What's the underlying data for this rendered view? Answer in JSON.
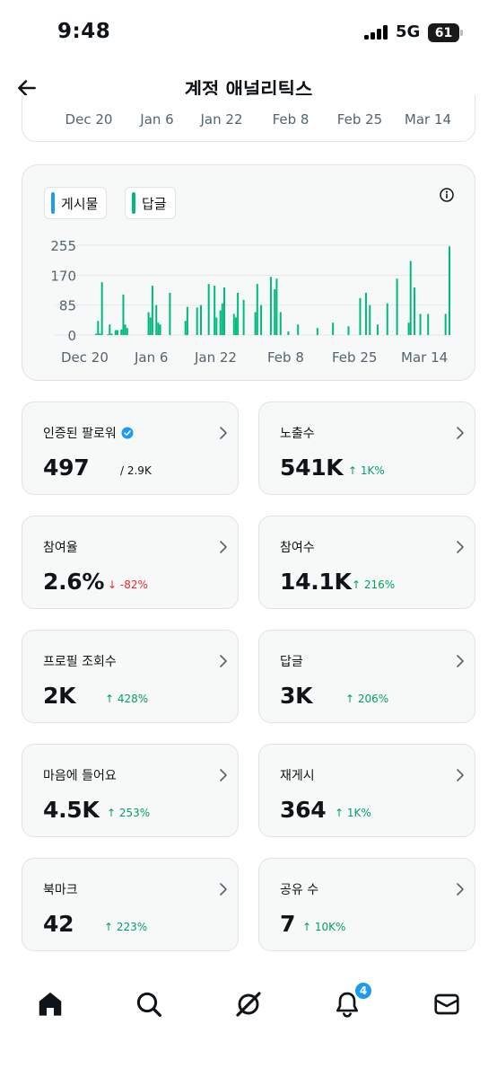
{
  "status_bar": {
    "time": "9:48",
    "network": "5G",
    "battery": "61"
  },
  "header": {
    "title": "계정 애널리틱스"
  },
  "top_chart_axis": [
    "Dec 20",
    "Jan 6",
    "Jan 22",
    "Feb 8",
    "Feb 25",
    "Mar 14"
  ],
  "legend": {
    "posts": "게시물",
    "replies": "답글"
  },
  "colors": {
    "posts": "#1d9bf0",
    "replies": "#00ba7c",
    "up": "#00a060",
    "down": "#f4212e",
    "verified": "#1d9bf0"
  },
  "icons": {
    "back": "arrow-left-icon",
    "info": "info-icon",
    "chevron": "chevron-right-icon"
  },
  "chart_data": {
    "type": "bar",
    "y_ticks": [
      "255",
      "170",
      "85",
      "0"
    ],
    "ylim": [
      0,
      255
    ],
    "x_ticks": [
      "Dec 20",
      "Jan 6",
      "Jan 22",
      "Feb 8",
      "Feb 25",
      "Mar 14"
    ],
    "series": [
      {
        "name": "답글",
        "values": [
          0,
          4,
          40,
          4,
          150,
          0,
          0,
          2,
          30,
          4,
          0,
          14,
          14,
          0,
          16,
          115,
          30,
          20,
          0,
          0,
          0,
          0,
          0,
          0,
          0,
          0,
          0,
          0,
          65,
          50,
          140,
          0,
          85,
          35,
          30,
          0,
          0,
          0,
          0,
          120,
          0,
          0,
          0,
          0,
          0,
          0,
          0,
          40,
          80,
          0,
          0,
          0,
          0,
          78,
          0,
          85,
          0,
          0,
          0,
          145,
          0,
          0,
          140,
          50,
          0,
          70,
          90,
          135,
          0,
          0,
          0,
          0,
          60,
          50,
          120,
          0,
          0,
          100,
          0,
          0,
          0,
          0,
          0,
          65,
          145,
          0,
          85,
          0,
          0,
          0,
          0,
          165,
          0,
          130,
          160,
          0,
          65,
          0,
          0,
          0,
          10,
          0,
          0,
          0,
          0,
          30,
          0,
          0,
          0,
          0,
          0,
          0,
          0,
          0,
          0,
          20,
          0,
          0,
          0,
          0,
          0,
          0,
          0,
          35,
          0,
          0,
          0,
          0,
          0,
          0,
          0,
          25,
          0,
          0,
          0,
          0,
          0,
          105,
          0,
          0,
          120,
          0,
          85,
          0,
          0,
          0,
          30,
          0,
          0,
          0,
          0,
          90,
          0,
          0,
          0,
          0,
          160,
          0,
          0,
          0,
          0,
          0,
          35,
          210,
          0,
          135,
          0,
          0,
          60,
          0,
          0,
          0,
          60,
          0,
          0,
          0,
          0,
          0,
          0,
          0,
          0,
          60,
          0,
          252
        ]
      }
    ]
  },
  "stats": [
    {
      "label": "인증된 팔로워",
      "value": "497",
      "sub": "/ 2.9K",
      "trend": "neutral",
      "verified": true
    },
    {
      "label": "노출수",
      "value": "541K",
      "sub": "↑ 1K%",
      "trend": "up",
      "verified": false
    },
    {
      "label": "참여율",
      "value": "2.6%",
      "sub": "↓ -82%",
      "trend": "down",
      "verified": false
    },
    {
      "label": "참여수",
      "value": "14.1K",
      "sub": "↑ 216%",
      "trend": "up",
      "verified": false
    },
    {
      "label": "프로필 조회수",
      "value": "2K",
      "sub": "↑ 428%",
      "trend": "up",
      "verified": false
    },
    {
      "label": "답글",
      "value": "3K",
      "sub": "↑ 206%",
      "trend": "up",
      "verified": false
    },
    {
      "label": "마음에 들어요",
      "value": "4.5K",
      "sub": "↑ 253%",
      "trend": "up",
      "verified": false
    },
    {
      "label": "재게시",
      "value": "364",
      "sub": "↑ 1K%",
      "trend": "up",
      "verified": false
    },
    {
      "label": "북마크",
      "value": "42",
      "sub": "↑ 223%",
      "trend": "up",
      "verified": false
    },
    {
      "label": "공유 수",
      "value": "7",
      "sub": "↑ 10K%",
      "trend": "up",
      "verified": false
    }
  ],
  "bottom_nav": {
    "items": [
      "home-icon",
      "search-icon",
      "grok-icon",
      "bell-icon",
      "mail-icon"
    ],
    "notification_count": "4"
  }
}
